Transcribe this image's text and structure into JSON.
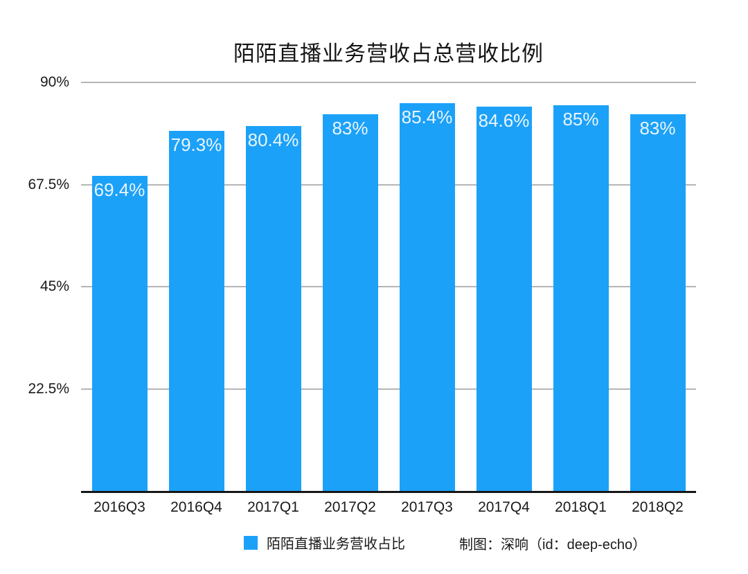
{
  "chart_data": {
    "type": "bar",
    "title": "陌陌直播业务营收占总营收比例",
    "categories": [
      "2016Q3",
      "2016Q4",
      "2017Q1",
      "2017Q2",
      "2017Q3",
      "2017Q4",
      "2018Q1",
      "2018Q2"
    ],
    "values": [
      69.4,
      79.3,
      80.4,
      83,
      85.4,
      84.6,
      85,
      83
    ],
    "value_labels": [
      "69.4%",
      "79.3%",
      "80.4%",
      "83%",
      "85.4%",
      "84.6%",
      "85%",
      "83%"
    ],
    "xlabel": "",
    "ylabel": "",
    "ylim": [
      0,
      90
    ],
    "yticks": [
      {
        "value": 90,
        "label": "90%"
      },
      {
        "value": 67.5,
        "label": "67.5%"
      },
      {
        "value": 45,
        "label": "45%"
      },
      {
        "value": 22.5,
        "label": "22.5%"
      }
    ],
    "grid": "horizontal",
    "legend_position": "bottom",
    "series": [
      {
        "name": "陌陌直播业务营收占比",
        "color": "#1CA1F8"
      }
    ]
  },
  "legend": {
    "label": "陌陌直播业务营收占比",
    "swatch_color": "#1CA1F8"
  },
  "credit": {
    "text": "制图：深响（id：deep-echo）"
  },
  "colors": {
    "bar": "#1CA1F8",
    "bar_value_label": "#e9f5fe",
    "gridline": "#b5b5b5",
    "axis_line": "#161616",
    "text": "#1a1a1a",
    "background": "#ffffff"
  }
}
